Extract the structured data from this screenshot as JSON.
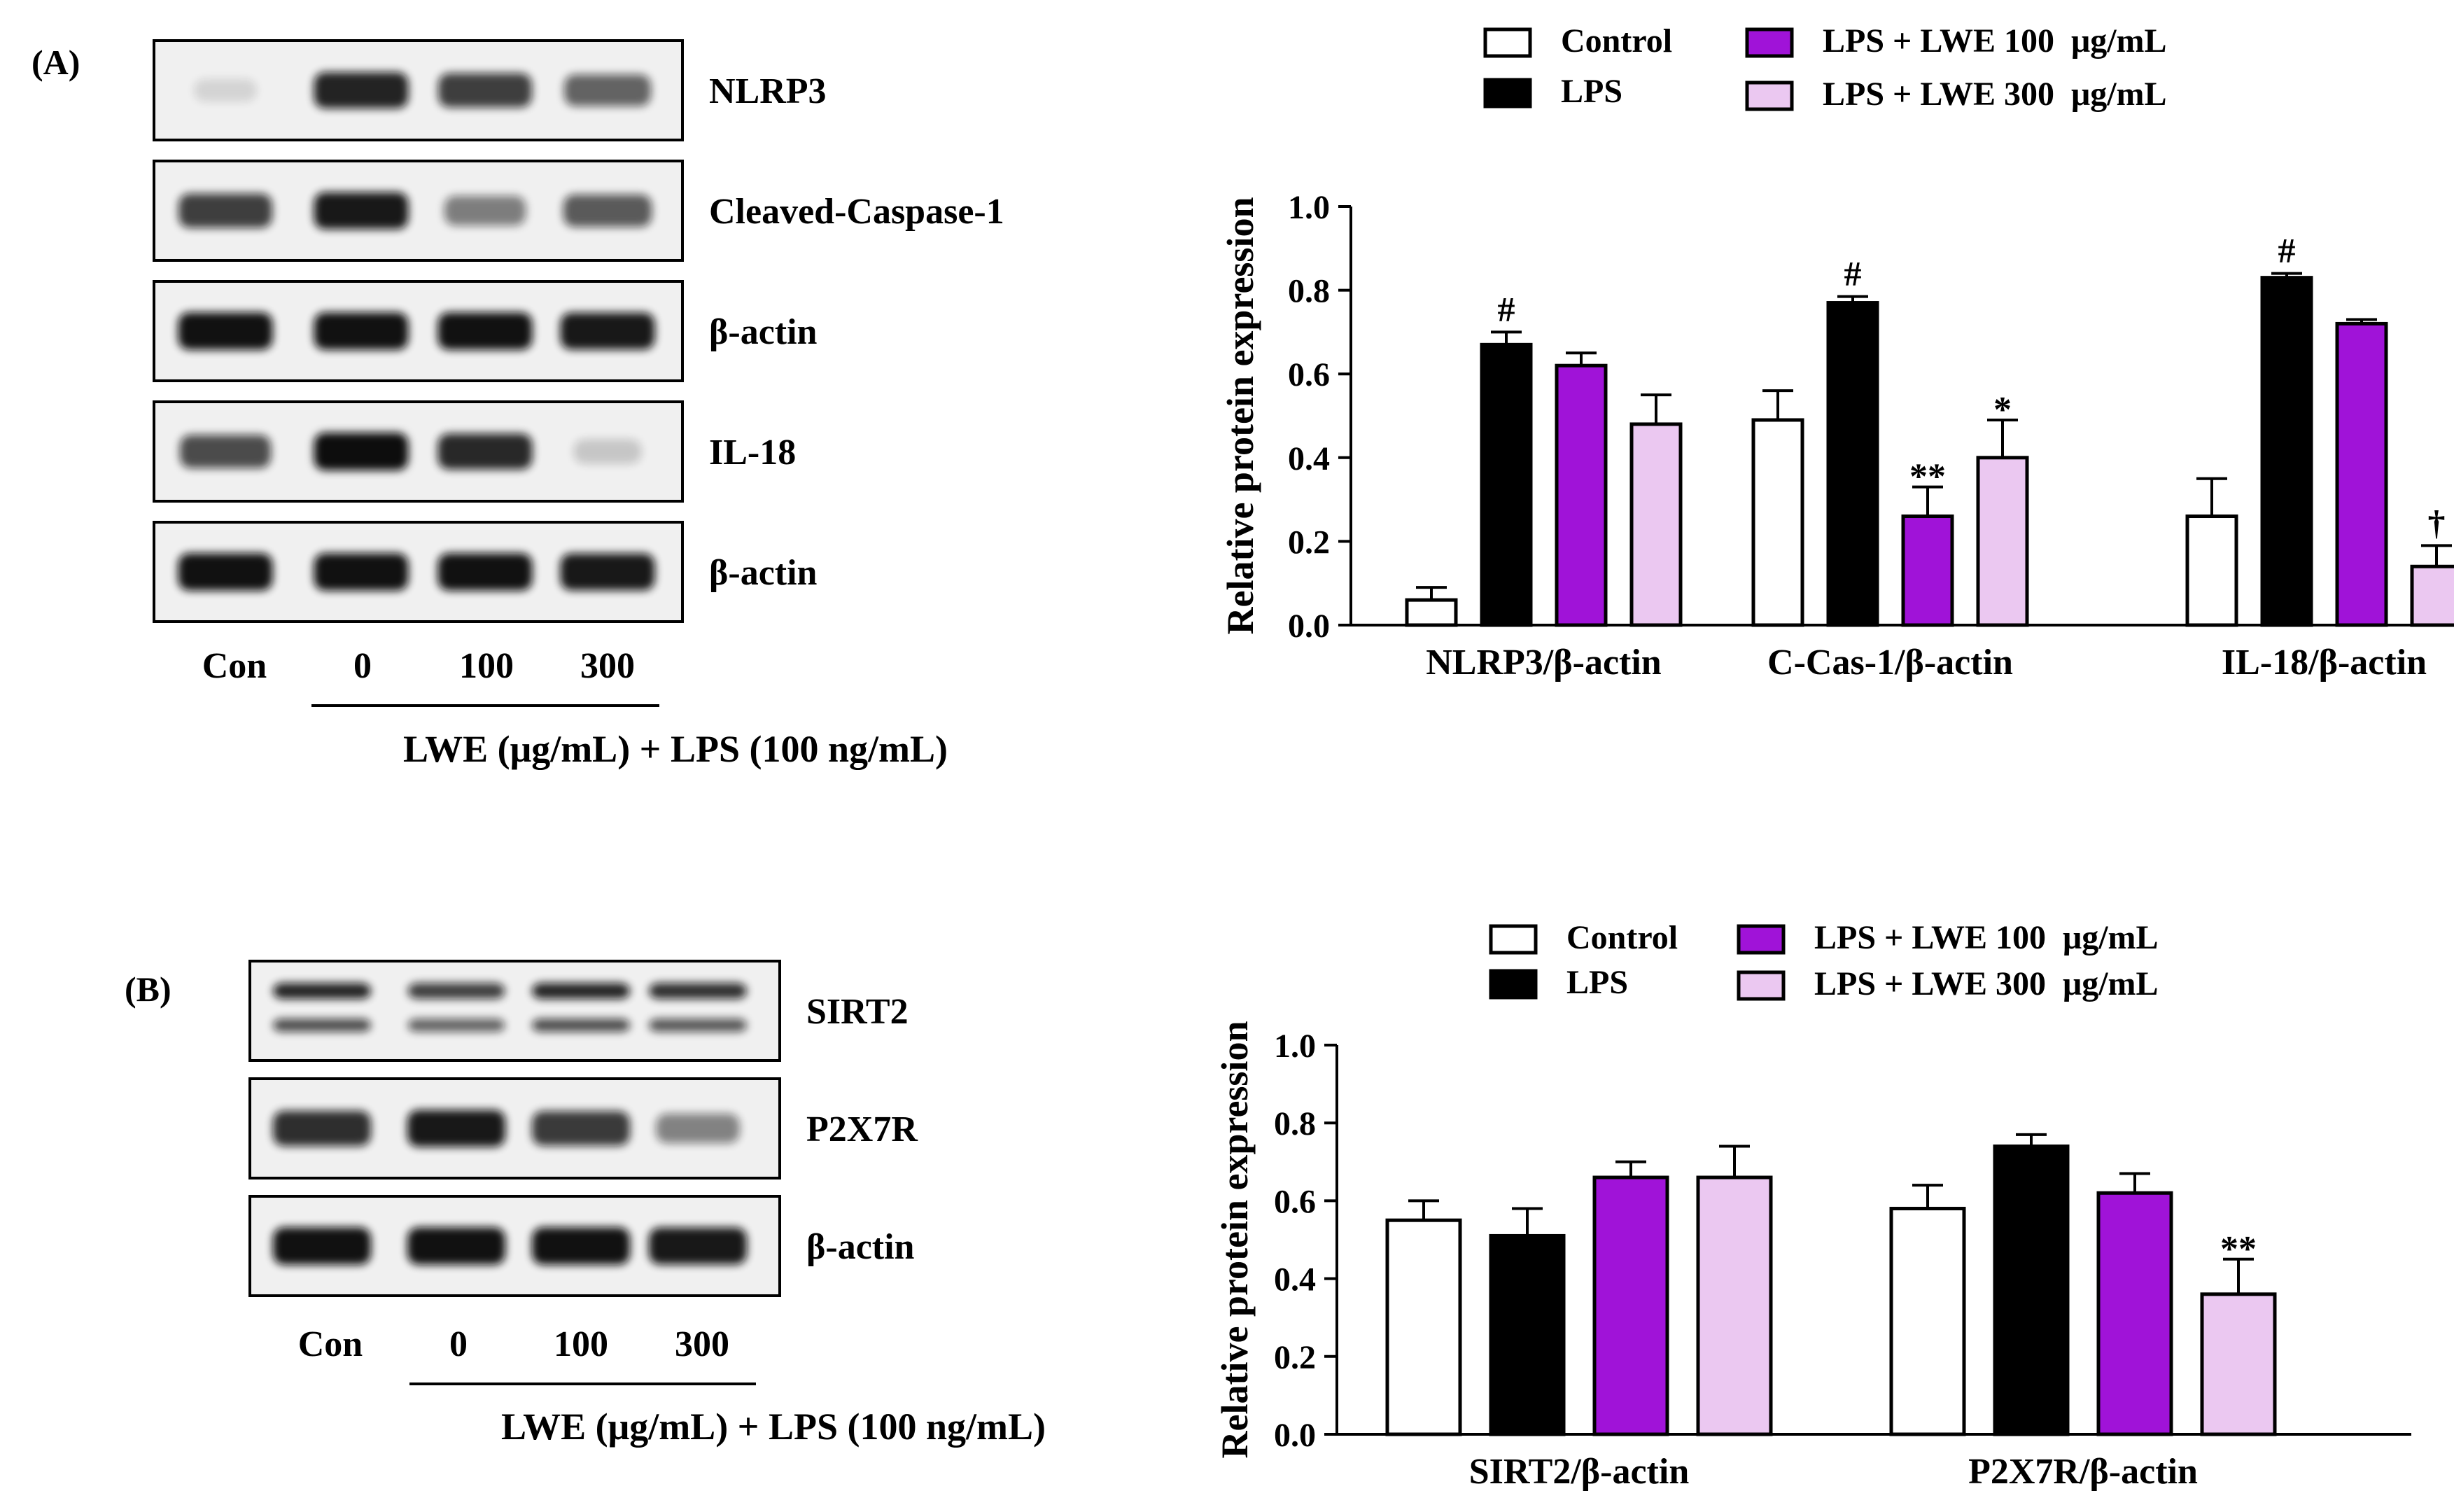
{
  "panels": {
    "a": {
      "label": "(A)",
      "blots": [
        {
          "label": "NLRP3",
          "intensity": [
            0.06,
            0.9,
            0.78,
            0.62
          ],
          "double": false
        },
        {
          "label": "Cleaved-Caspase-1",
          "intensity": [
            0.78,
            0.95,
            0.5,
            0.66
          ],
          "double": false
        },
        {
          "label": "β-actin",
          "intensity": [
            0.98,
            0.98,
            0.98,
            0.95
          ],
          "double": false
        },
        {
          "label": "IL-18",
          "intensity": [
            0.72,
            1.0,
            0.88,
            0.18
          ],
          "double": false
        },
        {
          "label": "β-actin",
          "intensity": [
            0.98,
            0.98,
            0.98,
            0.95
          ],
          "double": false
        }
      ],
      "lanes": [
        "Con",
        "0",
        "100",
        "300"
      ],
      "treatment_label": "LWE (μg/mL) + LPS (100 ng/mL)"
    },
    "b": {
      "label": "(B)",
      "blots": [
        {
          "label": "SIRT2",
          "intensity": [
            0.9,
            0.78,
            0.9,
            0.85
          ],
          "double": true
        },
        {
          "label": "P2X7R",
          "intensity": [
            0.85,
            0.95,
            0.8,
            0.48
          ],
          "double": false
        },
        {
          "label": "β-actin",
          "intensity": [
            0.98,
            0.98,
            0.98,
            0.95
          ],
          "double": false
        }
      ],
      "lanes": [
        "Con",
        "0",
        "100",
        "300"
      ],
      "treatment_label": "LWE (μg/mL) + LPS (100 ng/mL)"
    }
  },
  "colors": {
    "control": "#ffffff",
    "lps": "#000000",
    "lwe100": "#a013d8",
    "lwe300": "#ebc8f1"
  },
  "chart_data": [
    {
      "type": "bar",
      "panel": "A",
      "ylabel": "Relative protein expression",
      "ylim": [
        0,
        1.0
      ],
      "yticks": [
        "0.0",
        "0.2",
        "0.4",
        "0.6",
        "0.8",
        "1.0"
      ],
      "categories": [
        "NLRP3/β-actin",
        "C-Cas-1/β-actin",
        "IL-18/β-actin"
      ],
      "series": [
        {
          "name": "Control",
          "color": "#ffffff",
          "values": [
            0.06,
            0.49,
            0.26
          ],
          "errors": [
            0.03,
            0.07,
            0.09
          ],
          "annotations": [
            "",
            "",
            ""
          ]
        },
        {
          "name": "LPS",
          "color": "#000000",
          "values": [
            0.67,
            0.77,
            0.83
          ],
          "errors": [
            0.03,
            0.015,
            0.01
          ],
          "annotations": [
            "#",
            "#",
            "#"
          ]
        },
        {
          "name": "LPS + LWE 100  μg/mL",
          "color": "#a013d8",
          "values": [
            0.62,
            0.26,
            0.72
          ],
          "errors": [
            0.03,
            0.07,
            0.01
          ],
          "annotations": [
            "",
            "**",
            ""
          ]
        },
        {
          "name": "LPS + LWE 300  μg/mL",
          "color": "#ebc8f1",
          "values": [
            0.48,
            0.4,
            0.14
          ],
          "errors": [
            0.07,
            0.09,
            0.05
          ],
          "annotations": [
            "",
            "*",
            "†"
          ]
        }
      ]
    },
    {
      "type": "bar",
      "panel": "B",
      "ylabel": "Relative protein expression",
      "ylim": [
        0,
        1.0
      ],
      "yticks": [
        "0.0",
        "0.2",
        "0.4",
        "0.6",
        "0.8",
        "1.0"
      ],
      "categories": [
        "SIRT2/β-actin",
        "P2X7R/β-actin"
      ],
      "series": [
        {
          "name": "Control",
          "color": "#ffffff",
          "values": [
            0.55,
            0.58
          ],
          "errors": [
            0.05,
            0.06
          ],
          "annotations": [
            "",
            ""
          ]
        },
        {
          "name": "LPS",
          "color": "#000000",
          "values": [
            0.51,
            0.74
          ],
          "errors": [
            0.07,
            0.03
          ],
          "annotations": [
            "",
            ""
          ]
        },
        {
          "name": "LPS + LWE 100  μg/mL",
          "color": "#a013d8",
          "values": [
            0.66,
            0.62
          ],
          "errors": [
            0.04,
            0.05
          ],
          "annotations": [
            "",
            ""
          ]
        },
        {
          "name": "LPS + LWE 300  μg/mL",
          "color": "#ebc8f1",
          "values": [
            0.66,
            0.36
          ],
          "errors": [
            0.08,
            0.09
          ],
          "annotations": [
            "",
            "**"
          ]
        }
      ]
    }
  ]
}
